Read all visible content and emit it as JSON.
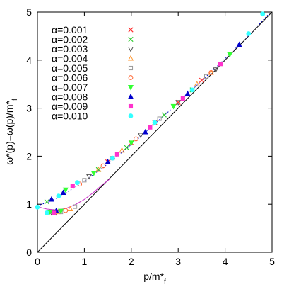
{
  "chart_data": {
    "type": "scatter",
    "xlabel_parts": [
      "p/m*",
      "f"
    ],
    "ylabel_parts": [
      "ω*(p)=ω(p)/m*",
      "f"
    ],
    "xlim": [
      0,
      5
    ],
    "ylim": [
      0,
      5
    ],
    "xticks": [
      "0",
      "1",
      "2",
      "3",
      "4",
      "5"
    ],
    "yticks": [
      "0",
      "1",
      "2",
      "3",
      "4",
      "5"
    ],
    "grid": false,
    "legend_position": "top-left",
    "series": [
      {
        "name": "α=0.001",
        "marker": "x",
        "color": "#ff3030",
        "points": [
          [
            1.5,
            1.88
          ],
          [
            2.0,
            2.28
          ],
          [
            2.5,
            2.7
          ],
          [
            3.0,
            3.12
          ],
          [
            3.5,
            3.58
          ]
        ]
      },
      {
        "name": "α=0.002",
        "marker": "x",
        "color": "#33cc33",
        "points": [
          [
            0.2,
            1.05
          ],
          [
            0.3,
            0.84
          ],
          [
            1.3,
            1.72
          ],
          [
            1.9,
            2.18
          ],
          [
            2.7,
            2.86
          ],
          [
            3.3,
            3.38
          ]
        ]
      },
      {
        "name": "α=0.003",
        "marker": "triangle-down-open",
        "color": "#555555",
        "points": [
          [
            0.3,
            0.83
          ],
          [
            0.4,
            0.83
          ],
          [
            1.1,
            1.58
          ],
          [
            2.2,
            2.44
          ],
          [
            3.0,
            3.12
          ],
          [
            3.8,
            3.8
          ]
        ]
      },
      {
        "name": "α=0.004",
        "marker": "triangle-open",
        "color": "#ff9933",
        "points": [
          [
            0.45,
            0.84
          ],
          [
            0.7,
            0.9
          ],
          [
            1.3,
            1.72
          ],
          [
            1.8,
            2.12
          ],
          [
            3.4,
            3.5
          ],
          [
            3.7,
            3.74
          ]
        ]
      },
      {
        "name": "α=0.005",
        "marker": "square-open",
        "color": "#999999",
        "points": [
          [
            0.5,
            0.84
          ],
          [
            0.8,
            0.95
          ],
          [
            1.0,
            1.5
          ],
          [
            1.6,
            1.96
          ],
          [
            2.6,
            2.78
          ],
          [
            3.6,
            3.66
          ]
        ]
      },
      {
        "name": "α=0.006",
        "marker": "circle-open",
        "color": "#ff6633",
        "points": [
          [
            0.6,
            0.87
          ],
          [
            0.9,
            1.42
          ],
          [
            1.4,
            1.8
          ],
          [
            2.1,
            2.36
          ],
          [
            3.7,
            3.74
          ]
        ]
      },
      {
        "name": "α=0.007",
        "marker": "triangle-down-filled",
        "color": "#33ff33",
        "points": [
          [
            0.25,
            0.83
          ],
          [
            0.5,
            0.86
          ],
          [
            0.6,
            1.3
          ],
          [
            1.2,
            1.65
          ],
          [
            2.0,
            2.28
          ],
          [
            2.9,
            3.04
          ],
          [
            4.1,
            4.12
          ]
        ]
      },
      {
        "name": "α=0.008",
        "marker": "triangle-filled",
        "color": "#0000cc",
        "points": [
          [
            0.3,
            1.1
          ],
          [
            0.4,
            0.86
          ],
          [
            0.55,
            1.24
          ],
          [
            1.5,
            1.88
          ],
          [
            2.3,
            2.5
          ],
          [
            3.2,
            3.3
          ],
          [
            4.3,
            4.32
          ]
        ]
      },
      {
        "name": "α=0.009",
        "marker": "square-filled",
        "color": "#ff33cc",
        "points": [
          [
            0.35,
            0.82
          ],
          [
            0.75,
            1.38
          ],
          [
            1.7,
            2.04
          ],
          [
            2.4,
            2.6
          ],
          [
            3.1,
            3.2
          ],
          [
            3.9,
            3.92
          ]
        ]
      },
      {
        "name": "α=0.010",
        "marker": "circle-filled",
        "color": "#33ffff",
        "points": [
          [
            0.0,
            0.94
          ],
          [
            0.2,
            0.82
          ],
          [
            0.45,
            1.17
          ],
          [
            0.85,
            1.45
          ],
          [
            1.6,
            1.96
          ],
          [
            2.5,
            2.7
          ],
          [
            3.3,
            3.38
          ],
          [
            4.5,
            4.55
          ],
          [
            4.8,
            4.96
          ]
        ]
      }
    ],
    "lines": [
      {
        "name": "diagonal",
        "style": "solid",
        "color": "#000000",
        "points": [
          [
            0,
            0
          ],
          [
            5,
            5
          ]
        ]
      },
      {
        "name": "upper-branch",
        "style": "dotted",
        "color": "#0000cc",
        "points": [
          [
            0,
            0.97
          ],
          [
            0.25,
            1.05
          ],
          [
            0.5,
            1.17
          ],
          [
            0.75,
            1.32
          ],
          [
            1.0,
            1.48
          ],
          [
            1.25,
            1.66
          ],
          [
            1.5,
            1.84
          ],
          [
            1.75,
            2.04
          ],
          [
            2.0,
            2.24
          ],
          [
            2.5,
            2.67
          ],
          [
            3.0,
            3.11
          ],
          [
            3.5,
            3.57
          ],
          [
            4.0,
            4.03
          ],
          [
            4.5,
            4.51
          ],
          [
            4.95,
            4.98
          ]
        ]
      },
      {
        "name": "lower-branch",
        "style": "solid",
        "color": "#cc33cc",
        "points": [
          [
            0,
            0.95
          ],
          [
            0.2,
            0.9
          ],
          [
            0.4,
            0.88
          ],
          [
            0.6,
            0.91
          ],
          [
            0.8,
            0.99
          ],
          [
            1.0,
            1.1
          ],
          [
            1.2,
            1.25
          ],
          [
            1.4,
            1.42
          ],
          [
            1.55,
            1.53
          ]
        ]
      }
    ]
  }
}
